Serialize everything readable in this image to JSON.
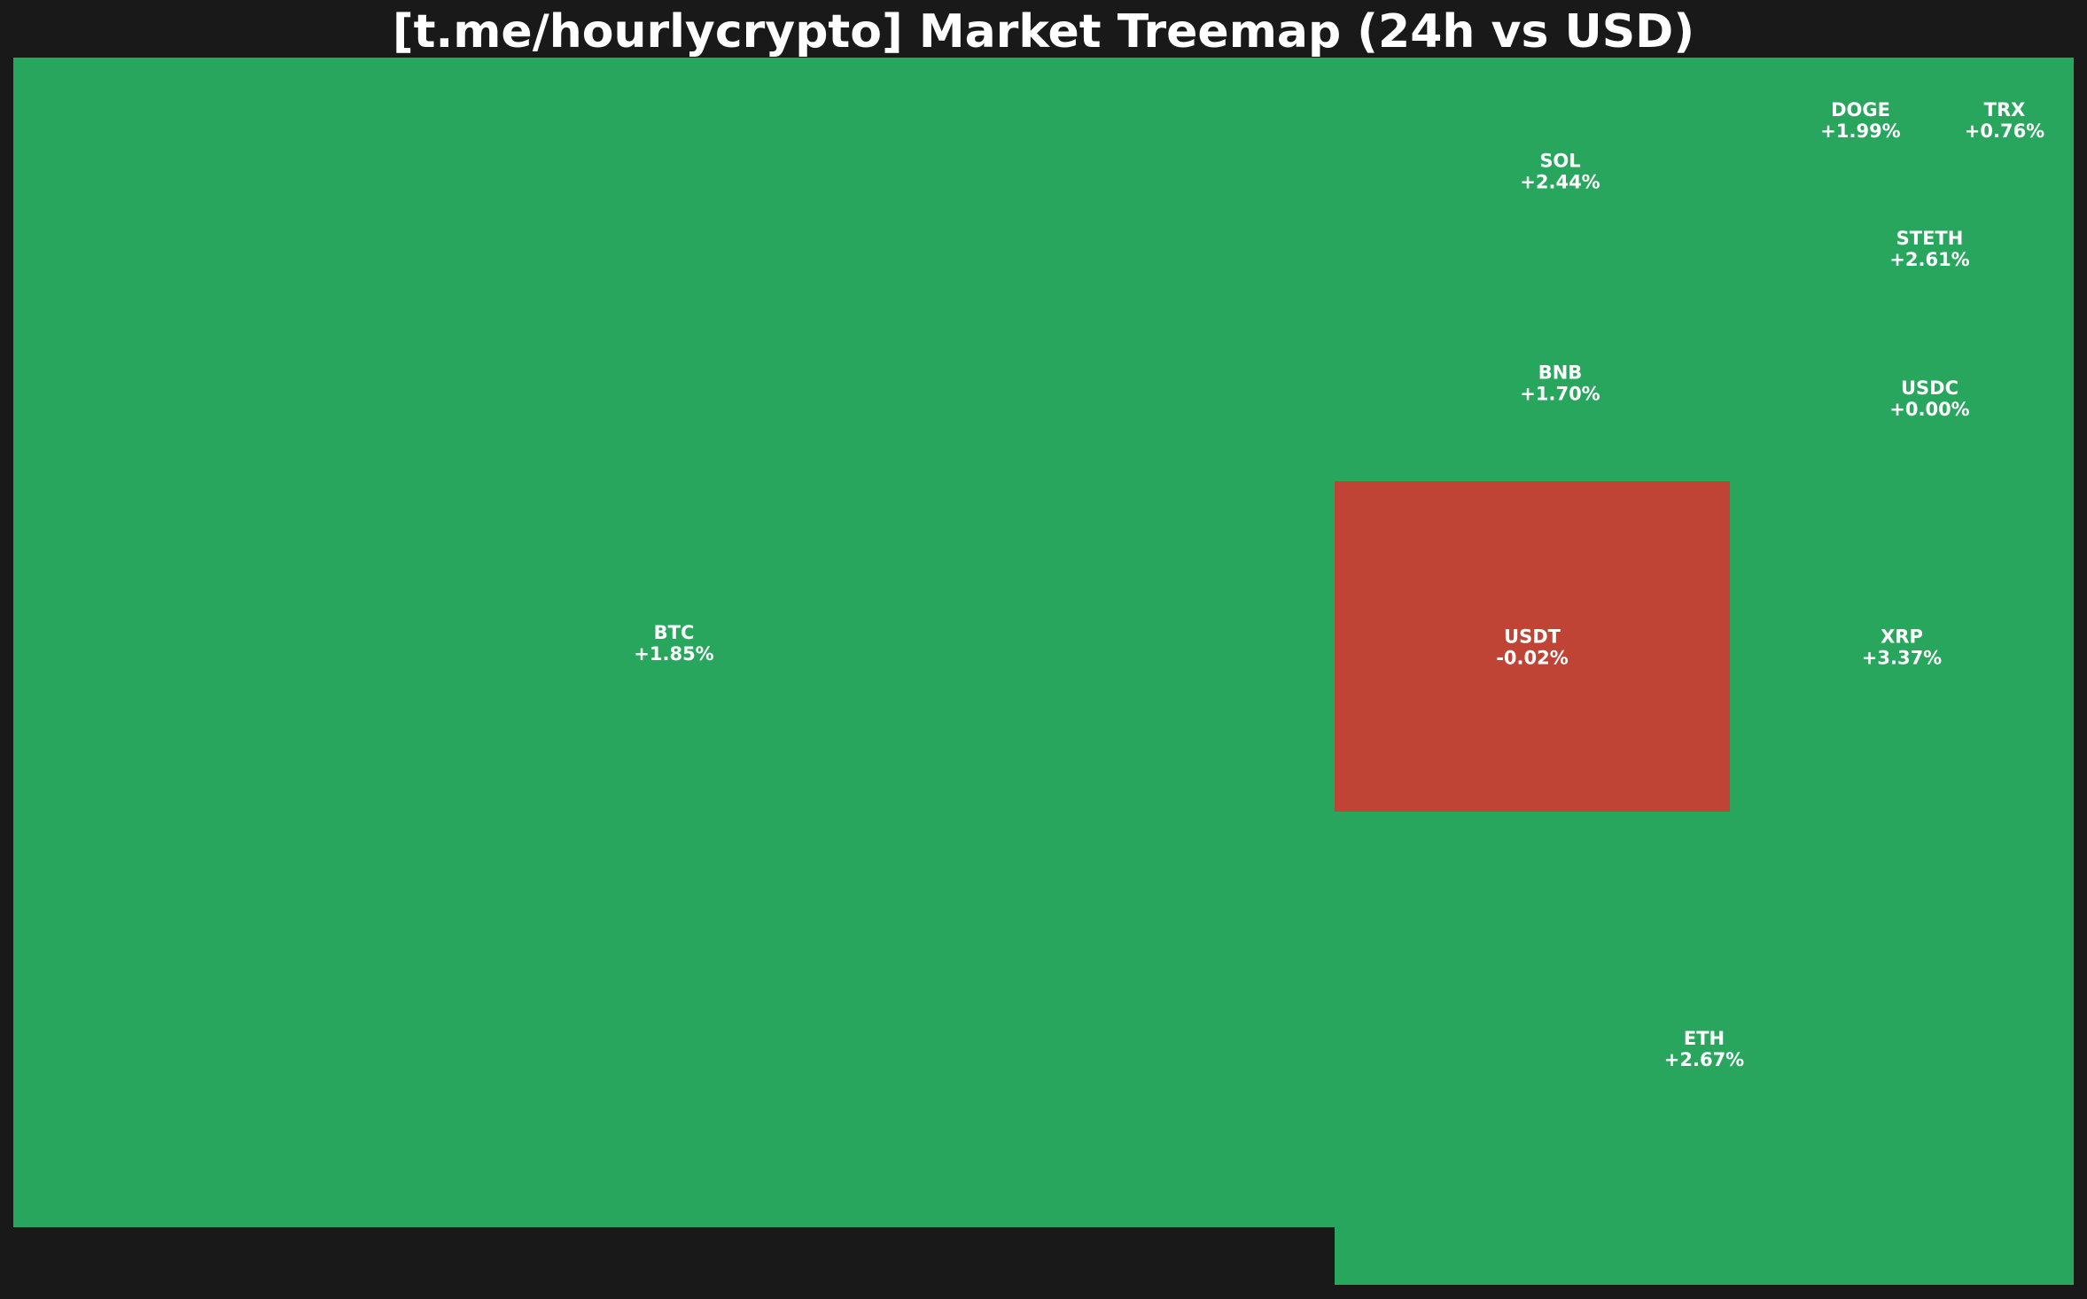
{
  "chart_data": {
    "type": "heatmap",
    "title": "[t.me/hourlycrypto] Market Treemap (24h vs USD)",
    "colors": {
      "positive": "#29a65e",
      "negative": "#c04435",
      "background": "#191919",
      "text": "#ffffff"
    },
    "tiles": [
      {
        "symbol": "BTC",
        "change": "+1.85%",
        "direction": "up"
      },
      {
        "symbol": "ETH",
        "change": "+2.67%",
        "direction": "up"
      },
      {
        "symbol": "USDT",
        "change": "-0.02%",
        "direction": "down"
      },
      {
        "symbol": "XRP",
        "change": "+3.37%",
        "direction": "up"
      },
      {
        "symbol": "BNB",
        "change": "+1.70%",
        "direction": "up"
      },
      {
        "symbol": "SOL",
        "change": "+2.44%",
        "direction": "up"
      },
      {
        "symbol": "USDC",
        "change": "+0.00%",
        "direction": "up"
      },
      {
        "symbol": "STETH",
        "change": "+2.61%",
        "direction": "up"
      },
      {
        "symbol": "DOGE",
        "change": "+1.99%",
        "direction": "up"
      },
      {
        "symbol": "TRX",
        "change": "+0.76%",
        "direction": "up"
      }
    ]
  }
}
